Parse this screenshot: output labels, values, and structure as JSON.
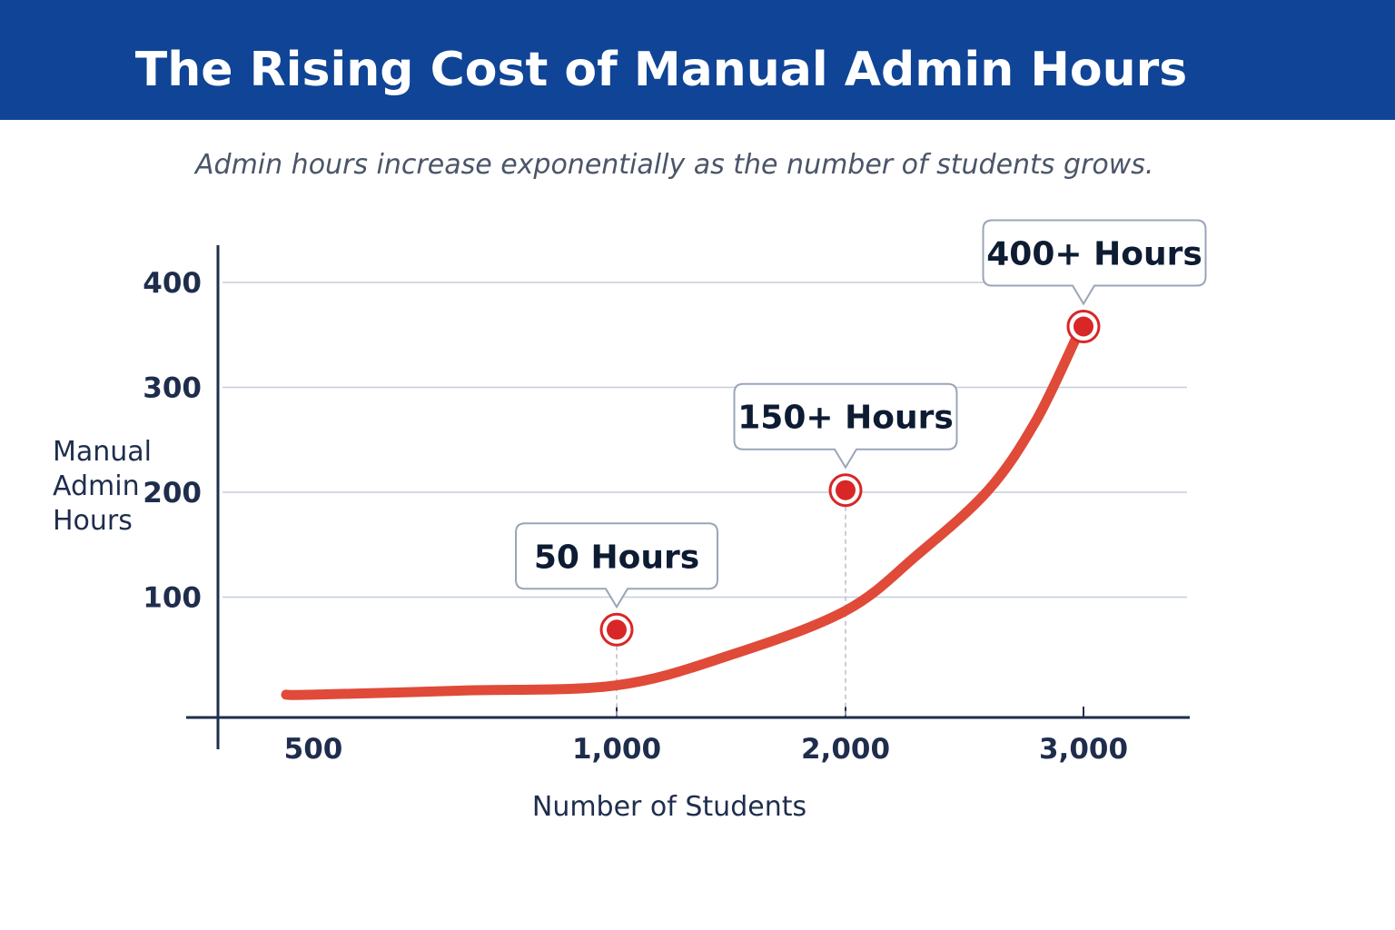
{
  "title": "The Rising Cost of Manual Admin Hours",
  "subtitle": "Admin hours increase exponentially as the number of students grows.",
  "colors": {
    "banner": "#0f4496",
    "curve": "#e04a38",
    "point": "#d92626",
    "axis": "#1f2d4d",
    "grid": "#c5cedb"
  },
  "chart_data": {
    "type": "line",
    "title": "The Rising Cost of Manual Admin Hours",
    "xlabel": "Number of Students",
    "ylabel_lines": [
      "Manual",
      "Admin",
      "Hours"
    ],
    "x_ticks": [
      {
        "value": 500,
        "label": "500"
      },
      {
        "value": 1000,
        "label": "1,000"
      },
      {
        "value": 2000,
        "label": "2,000"
      },
      {
        "value": 3000,
        "label": "3,000"
      }
    ],
    "y_ticks": [
      {
        "value": 100,
        "label": "100"
      },
      {
        "value": 200,
        "label": "200"
      },
      {
        "value": 300,
        "label": "300"
      },
      {
        "value": 400,
        "label": "400"
      }
    ],
    "ylim": [
      0,
      400
    ],
    "grid": true,
    "series": [
      {
        "name": "Admin hours",
        "x": [
          455,
          500,
          750,
          1000,
          1500,
          2000,
          2300,
          2600,
          2800,
          2965
        ],
        "y": [
          7,
          7,
          11,
          16,
          45,
          87,
          140,
          202,
          268,
          345
        ]
      }
    ],
    "highlights": [
      {
        "x": 1000,
        "y": 69,
        "label": "50 Hours"
      },
      {
        "x": 2000,
        "y": 202,
        "label": "150+ Hours"
      },
      {
        "x": 3000,
        "y": 358,
        "label": "400+ Hours"
      }
    ]
  }
}
